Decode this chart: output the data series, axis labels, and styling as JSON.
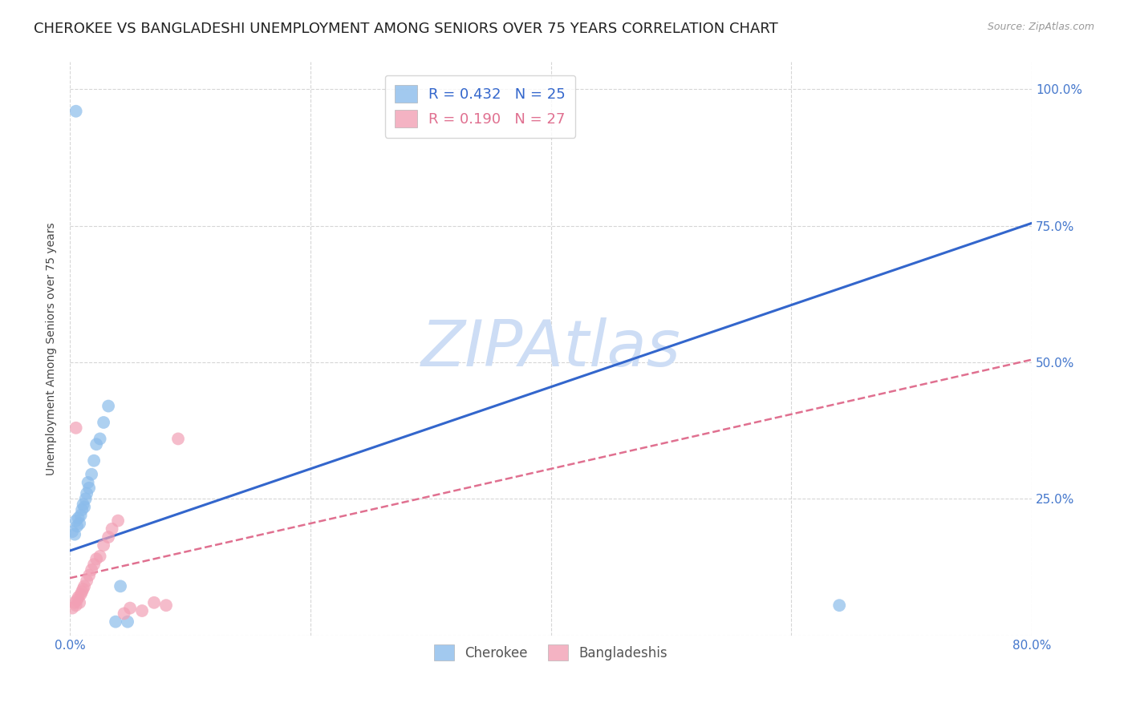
{
  "title": "CHEROKEE VS BANGLADESHI UNEMPLOYMENT AMONG SENIORS OVER 75 YEARS CORRELATION CHART",
  "source": "Source: ZipAtlas.com",
  "ylabel": "Unemployment Among Seniors over 75 years",
  "xlim": [
    0.0,
    0.8
  ],
  "ylim": [
    0.0,
    1.05
  ],
  "xticks": [
    0.0,
    0.2,
    0.4,
    0.6,
    0.8
  ],
  "xticklabels": [
    "0.0%",
    "",
    "",
    "",
    "80.0%"
  ],
  "yticks": [
    0.0,
    0.25,
    0.5,
    0.75,
    1.0
  ],
  "yticklabels_right": [
    "",
    "25.0%",
    "50.0%",
    "75.0%",
    "100.0%"
  ],
  "cherokee_color": "#8bbceb",
  "bangladeshi_color": "#f2a0b5",
  "cherokee_line_color": "#3366cc",
  "bangladeshi_line_color": "#e07090",
  "legend_cherokee": "R = 0.432   N = 25",
  "legend_bangladeshi": "R = 0.190   N = 27",
  "watermark": "ZIPAtlas",
  "watermark_color": "#cdddf5",
  "cherokee_line_x0": 0.0,
  "cherokee_line_y0": 0.155,
  "cherokee_line_x1": 0.8,
  "cherokee_line_y1": 0.755,
  "bangladeshi_line_x0": 0.0,
  "bangladeshi_line_y0": 0.105,
  "bangladeshi_line_x1": 0.8,
  "bangladeshi_line_y1": 0.505,
  "cherokee_x": [
    0.002,
    0.004,
    0.005,
    0.006,
    0.007,
    0.008,
    0.009,
    0.01,
    0.011,
    0.012,
    0.013,
    0.014,
    0.015,
    0.016,
    0.018,
    0.02,
    0.022,
    0.025,
    0.028,
    0.032,
    0.038,
    0.042,
    0.048,
    0.64,
    0.005
  ],
  "cherokee_y": [
    0.19,
    0.185,
    0.21,
    0.2,
    0.215,
    0.205,
    0.22,
    0.23,
    0.24,
    0.235,
    0.25,
    0.26,
    0.28,
    0.27,
    0.295,
    0.32,
    0.35,
    0.36,
    0.39,
    0.42,
    0.025,
    0.09,
    0.025,
    0.055,
    0.96
  ],
  "bangladeshi_x": [
    0.002,
    0.004,
    0.005,
    0.006,
    0.007,
    0.008,
    0.009,
    0.01,
    0.011,
    0.012,
    0.014,
    0.016,
    0.018,
    0.02,
    0.022,
    0.025,
    0.028,
    0.032,
    0.035,
    0.04,
    0.045,
    0.05,
    0.06,
    0.07,
    0.08,
    0.09,
    0.005
  ],
  "bangladeshi_y": [
    0.05,
    0.06,
    0.055,
    0.065,
    0.07,
    0.06,
    0.075,
    0.08,
    0.085,
    0.09,
    0.1,
    0.11,
    0.12,
    0.13,
    0.14,
    0.145,
    0.165,
    0.18,
    0.195,
    0.21,
    0.04,
    0.05,
    0.045,
    0.06,
    0.055,
    0.36,
    0.38
  ],
  "background_color": "#ffffff",
  "grid_color": "#cccccc",
  "tick_color": "#4477cc",
  "title_fontsize": 13,
  "axis_label_fontsize": 10,
  "tick_fontsize": 11,
  "watermark_fontsize": 58,
  "marker_size": 130
}
